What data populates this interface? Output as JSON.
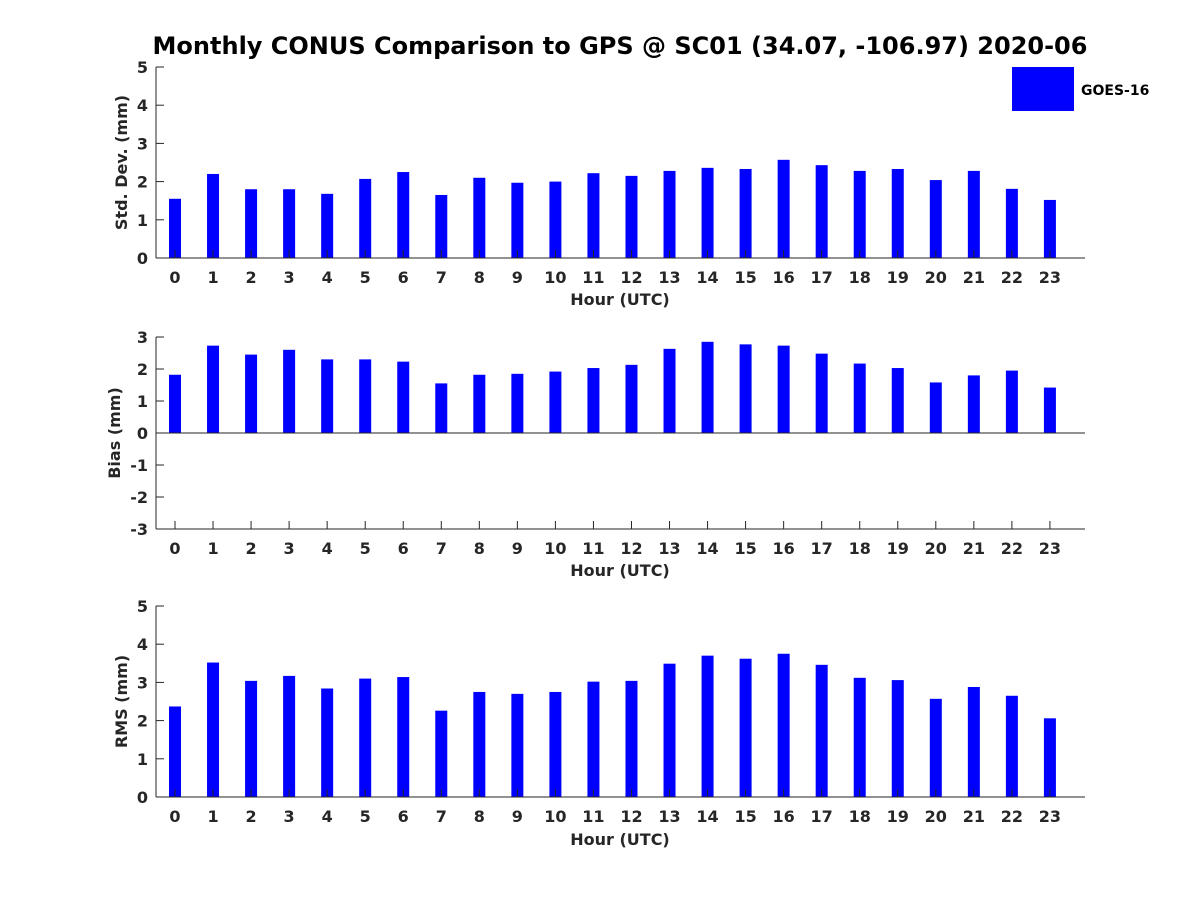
{
  "title": "Monthly CONUS Comparison to GPS @ SC01 (34.07, -106.97) 2020-06",
  "legend": {
    "label": "GOES-16",
    "color": "#0000ff",
    "placement": "top-right"
  },
  "chart_data": [
    {
      "type": "bar",
      "xlabel": "Hour (UTC)",
      "ylabel": "Std. Dev. (mm)",
      "ylim": [
        0,
        5
      ],
      "yticks": [
        0,
        1,
        2,
        3,
        4,
        5
      ],
      "categories": [
        "0",
        "1",
        "2",
        "3",
        "4",
        "5",
        "6",
        "7",
        "8",
        "9",
        "10",
        "11",
        "12",
        "13",
        "14",
        "15",
        "16",
        "17",
        "18",
        "19",
        "20",
        "21",
        "22",
        "23"
      ],
      "series": [
        {
          "name": "GOES-16",
          "values": [
            1.55,
            2.2,
            1.8,
            1.8,
            1.68,
            2.07,
            2.25,
            1.65,
            2.1,
            1.97,
            2.0,
            2.22,
            2.15,
            2.28,
            2.36,
            2.33,
            2.57,
            2.43,
            2.28,
            2.33,
            2.04,
            2.28,
            1.81,
            1.52
          ]
        }
      ],
      "color": "#0000ff"
    },
    {
      "type": "bar",
      "xlabel": "Hour (UTC)",
      "ylabel": "Bias (mm)",
      "ylim": [
        -3,
        3
      ],
      "yticks": [
        -3,
        -2,
        -1,
        0,
        1,
        2,
        3
      ],
      "categories": [
        "0",
        "1",
        "2",
        "3",
        "4",
        "5",
        "6",
        "7",
        "8",
        "9",
        "10",
        "11",
        "12",
        "13",
        "14",
        "15",
        "16",
        "17",
        "18",
        "19",
        "20",
        "21",
        "22",
        "23"
      ],
      "series": [
        {
          "name": "GOES-16",
          "values": [
            1.82,
            2.73,
            2.45,
            2.6,
            2.3,
            2.3,
            2.23,
            1.55,
            1.82,
            1.85,
            1.92,
            2.03,
            2.13,
            2.63,
            2.85,
            2.77,
            2.73,
            2.48,
            2.17,
            2.03,
            1.58,
            1.8,
            1.95,
            1.42
          ]
        }
      ],
      "color": "#0000ff"
    },
    {
      "type": "bar",
      "xlabel": "Hour (UTC)",
      "ylabel": "RMS (mm)",
      "ylim": [
        0,
        5
      ],
      "yticks": [
        0,
        1,
        2,
        3,
        4,
        5
      ],
      "categories": [
        "0",
        "1",
        "2",
        "3",
        "4",
        "5",
        "6",
        "7",
        "8",
        "9",
        "10",
        "11",
        "12",
        "13",
        "14",
        "15",
        "16",
        "17",
        "18",
        "19",
        "20",
        "21",
        "22",
        "23"
      ],
      "series": [
        {
          "name": "GOES-16",
          "values": [
            2.37,
            3.52,
            3.04,
            3.17,
            2.84,
            3.1,
            3.14,
            2.26,
            2.75,
            2.7,
            2.75,
            3.02,
            3.04,
            3.49,
            3.7,
            3.62,
            3.75,
            3.46,
            3.12,
            3.06,
            2.57,
            2.88,
            2.65,
            2.06
          ]
        }
      ],
      "color": "#0000ff"
    }
  ]
}
